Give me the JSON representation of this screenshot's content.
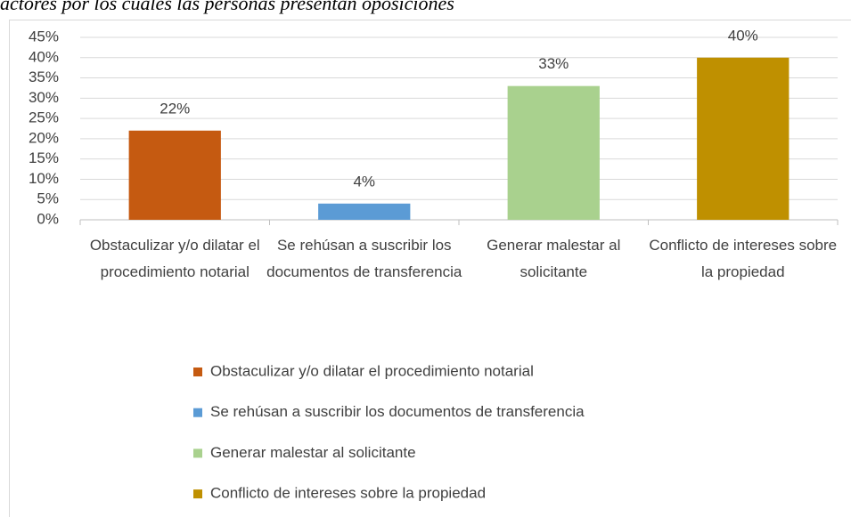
{
  "chart_data": {
    "type": "bar",
    "title": "actores por los cuales las personas presentan oposiciones",
    "categories": [
      "Obstaculizar y/o dilatar el procedimiento notarial",
      "Se rehúsan a suscribir los documentos de transferencia",
      "Generar malestar al solicitante",
      "Conflicto de intereses sobre la propiedad"
    ],
    "values": [
      22,
      4,
      33,
      40
    ],
    "value_labels": [
      "22%",
      "4%",
      "33%",
      "40%"
    ],
    "colors": [
      "#C55A11",
      "#5B9BD5",
      "#A9D18E",
      "#BF9000"
    ],
    "ylim": [
      0,
      45
    ],
    "yticks": [
      {
        "value": 0,
        "label": "0%"
      },
      {
        "value": 5,
        "label": "5%"
      },
      {
        "value": 10,
        "label": "10%"
      },
      {
        "value": 15,
        "label": "15%"
      },
      {
        "value": 20,
        "label": "20%"
      },
      {
        "value": 25,
        "label": "25%"
      },
      {
        "value": 30,
        "label": "30%"
      },
      {
        "value": 35,
        "label": "35%"
      },
      {
        "value": 40,
        "label": "40%"
      },
      {
        "value": 45,
        "label": "45%"
      }
    ],
    "grid": true,
    "legend": "bottom"
  }
}
